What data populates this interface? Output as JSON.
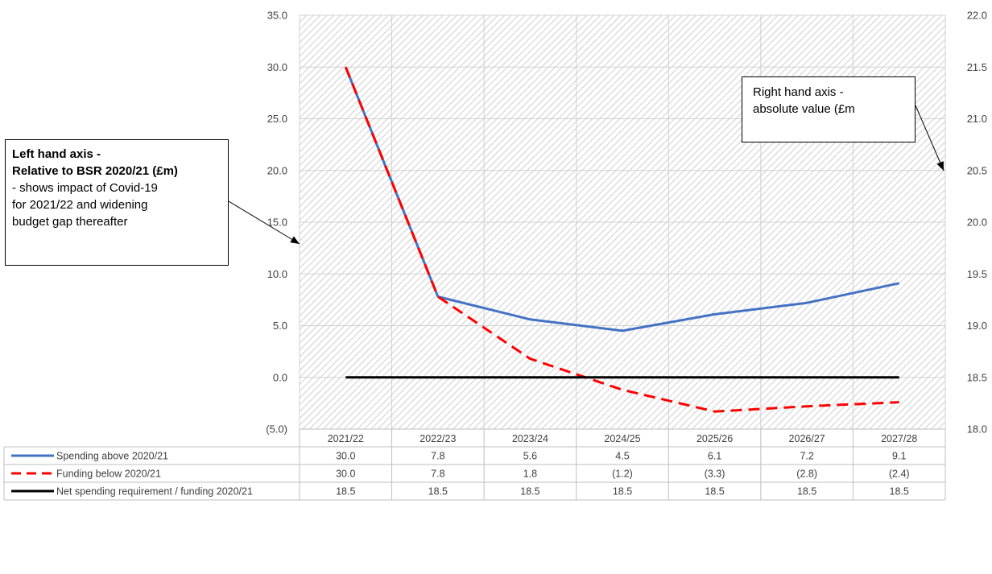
{
  "chart_data": {
    "type": "line",
    "categories": [
      "2021/22",
      "2022/23",
      "2023/24",
      "2024/25",
      "2025/26",
      "2026/27",
      "2027/28"
    ],
    "left_axis": {
      "ylim": [
        -5,
        35
      ],
      "ticks": [
        35,
        30,
        25,
        20,
        15,
        10,
        5,
        0,
        -5
      ],
      "tick_labels": [
        "35.0",
        "30.0",
        "25.0",
        "20.0",
        "15.0",
        "10.0",
        "5.0",
        "0.0",
        "(5.0)"
      ]
    },
    "right_axis": {
      "ylim": [
        18.0,
        22.0
      ],
      "ticks": [
        22.0,
        21.5,
        21.0,
        20.5,
        20.0,
        19.5,
        19.0,
        18.5,
        18.0
      ],
      "tick_labels": [
        "22.0",
        "21.5",
        "21.0",
        "20.5",
        "20.0",
        "19.5",
        "19.0",
        "18.5",
        "18.0"
      ]
    },
    "series": [
      {
        "name": "Spending above 2020/21",
        "axis": "left",
        "color": "#4472C4",
        "style": "solid",
        "values": [
          30.0,
          7.8,
          5.6,
          4.5,
          6.1,
          7.2,
          9.1
        ],
        "labels": [
          "30.0",
          "7.8",
          "5.6",
          "4.5",
          "6.1",
          "7.2",
          "9.1"
        ]
      },
      {
        "name": "Funding below 2020/21",
        "axis": "left",
        "color": "#FF0000",
        "style": "dashed",
        "values": [
          30.0,
          7.8,
          1.8,
          -1.2,
          -3.3,
          -2.8,
          -2.4
        ],
        "labels": [
          "30.0",
          "7.8",
          "1.8",
          "(1.2)",
          "(3.3)",
          "(2.8)",
          "(2.4)"
        ]
      },
      {
        "name": "Net spending requirement / funding 2020/21",
        "axis": "right",
        "color": "#000000",
        "style": "solid",
        "values": [
          18.5,
          18.5,
          18.5,
          18.5,
          18.5,
          18.5,
          18.5
        ],
        "labels": [
          "18.5",
          "18.5",
          "18.5",
          "18.5",
          "18.5",
          "18.5",
          "18.5"
        ]
      }
    ],
    "grid": true,
    "legend": "data-table-below",
    "annotations": {
      "left": {
        "bold_lines": [
          "Left hand axis -",
          "Relative to BSR 2020/21 (£m)"
        ],
        "lines": [
          "- shows impact of Covid-19",
          "for 2021/22 and widening",
          "budget gap thereafter"
        ]
      },
      "right": {
        "lines": [
          "Right hand axis -",
          "absolute value (£m"
        ]
      }
    }
  }
}
